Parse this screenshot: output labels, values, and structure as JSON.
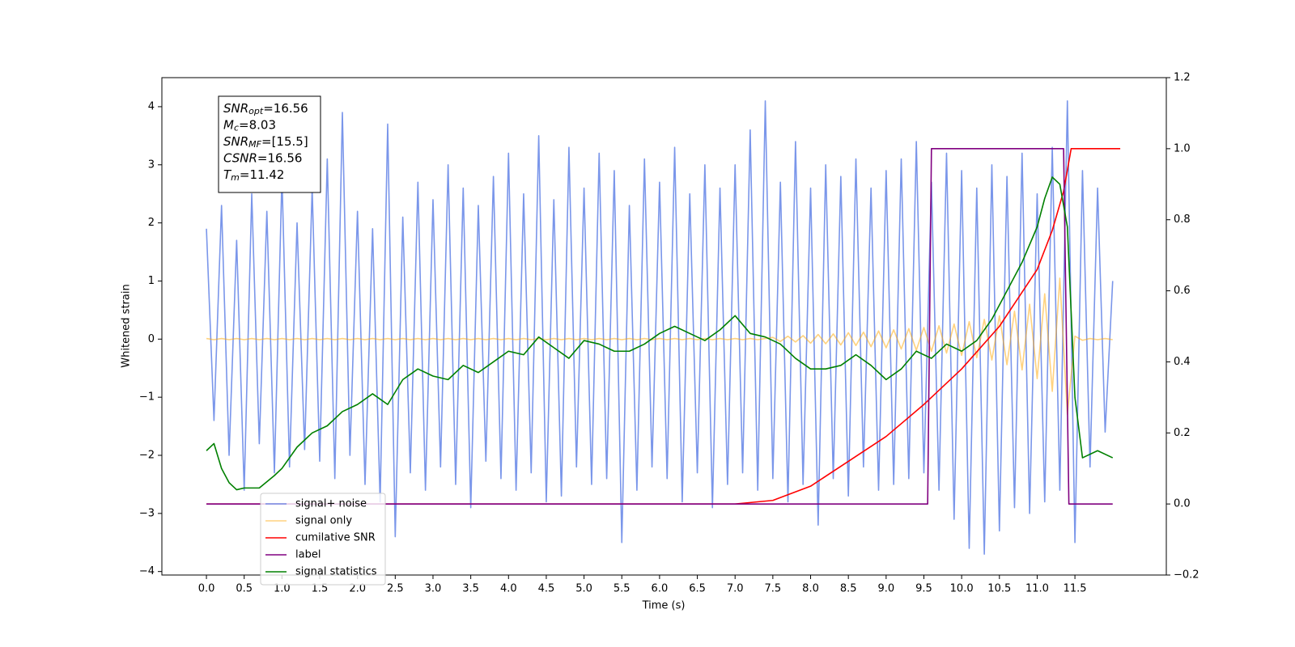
{
  "chart_data": {
    "type": "line",
    "xlabel": "Time (s)",
    "ylabel": "Whitened strain",
    "xlim": [
      -0.59,
      12.71
    ],
    "ylim": [
      -4.06,
      4.5
    ],
    "y2lim": [
      -0.2,
      1.2
    ],
    "xticks": [
      {
        "value": 0,
        "label": "0.0"
      },
      0.5,
      {
        "value": 1,
        "label": "1.0"
      },
      1.5,
      {
        "value": 2,
        "label": "2.0"
      },
      2.5,
      {
        "value": 3,
        "label": "3.0"
      },
      3.5,
      {
        "value": 4,
        "label": "4.0"
      },
      4.5,
      {
        "value": 5,
        "label": "5.0"
      },
      5.5,
      {
        "value": 6,
        "label": "6.0"
      },
      6.5,
      {
        "value": 7,
        "label": "7.0"
      },
      7.5,
      {
        "value": 8,
        "label": "8.0"
      },
      8.5,
      {
        "value": 9,
        "label": "9.0"
      },
      9.5,
      {
        "value": 10,
        "label": "10.0"
      },
      10.5,
      {
        "value": 11,
        "label": "11.0"
      },
      11.5
    ],
    "yticks": [
      {
        "value": -4,
        "label": "−4"
      },
      {
        "value": -3,
        "label": "−3"
      },
      {
        "value": -2,
        "label": "−2"
      },
      {
        "value": -1,
        "label": "−1"
      },
      0,
      1,
      2,
      3,
      4
    ],
    "y2ticks": [
      {
        "value": -0.2,
        "label": "−0.2"
      },
      {
        "value": 0,
        "label": "0.0"
      },
      0.2,
      0.4,
      0.6,
      0.8,
      {
        "value": 1,
        "label": "1.0"
      },
      1.2
    ],
    "annotation": [
      {
        "name": "SNR",
        "sub": "opt",
        "text": "=16.56"
      },
      {
        "name": "M",
        "sub": "c",
        "text": "=8.03"
      },
      {
        "name": "SNR",
        "sub": "MF",
        "text": "=[15.5]"
      },
      {
        "name": "CSNR",
        "text": "=16.56"
      },
      {
        "name": "T",
        "sub": "m",
        "text": "=11.42"
      }
    ],
    "x": [
      0,
      0.1,
      0.2,
      0.3,
      0.4,
      0.5,
      0.6,
      0.7,
      0.8,
      0.9,
      1,
      1.1,
      1.2,
      1.3,
      1.4,
      1.5,
      1.6,
      1.7,
      1.8,
      1.9,
      2,
      2.1,
      2.2,
      2.3,
      2.4,
      2.5,
      2.6,
      2.7,
      2.8,
      2.9,
      3,
      3.1,
      3.2,
      3.3,
      3.4,
      3.5,
      3.6,
      3.7,
      3.8,
      3.9,
      4,
      4.1,
      4.2,
      4.3,
      4.4,
      4.5,
      4.6,
      4.7,
      4.8,
      4.9,
      5,
      5.1,
      5.2,
      5.3,
      5.4,
      5.5,
      5.6,
      5.7,
      5.8,
      5.9,
      6,
      6.1,
      6.2,
      6.3,
      6.4,
      6.5,
      6.6,
      6.7,
      6.8,
      6.9,
      7,
      7.1,
      7.2,
      7.3,
      7.4,
      7.5,
      7.6,
      7.7,
      7.8,
      7.9,
      8,
      8.1,
      8.2,
      8.3,
      8.4,
      8.5,
      8.6,
      8.7,
      8.8,
      8.9,
      9,
      9.1,
      9.2,
      9.3,
      9.4,
      9.5,
      9.6,
      9.7,
      9.8,
      9.9,
      10,
      10.1,
      10.2,
      10.3,
      10.4,
      10.5,
      10.6,
      10.7,
      10.8,
      10.9,
      11,
      11.1,
      11.2,
      11.3,
      11.4,
      11.5,
      11.6,
      11.7,
      11.8,
      11.9,
      12
    ],
    "series": [
      {
        "name": "signal+ noise",
        "color": "#4169e1",
        "opacity": 0.7,
        "values": [
          1.9,
          -1.4,
          2.3,
          -2.0,
          1.7,
          -2.6,
          2.5,
          -1.8,
          2.2,
          -2.3,
          2.8,
          -2.2,
          2.0,
          -1.9,
          2.6,
          -2.1,
          3.1,
          -2.4,
          3.9,
          -2.0,
          2.2,
          -2.5,
          1.9,
          -2.8,
          3.7,
          -3.4,
          2.1,
          -2.3,
          2.7,
          -2.6,
          2.4,
          -2.2,
          3.0,
          -2.5,
          2.6,
          -2.9,
          2.3,
          -2.1,
          2.8,
          -2.4,
          3.2,
          -2.6,
          2.5,
          -2.3,
          3.5,
          -2.8,
          2.4,
          -2.7,
          3.3,
          -2.2,
          2.6,
          -2.5,
          3.2,
          -2.4,
          2.9,
          -3.5,
          2.3,
          -2.6,
          3.1,
          -2.2,
          2.7,
          -2.4,
          3.3,
          -2.8,
          2.5,
          -2.3,
          3.0,
          -2.9,
          2.6,
          -2.5,
          3.0,
          -2.3,
          3.6,
          -2.6,
          4.1,
          -2.4,
          2.7,
          -2.8,
          3.4,
          -2.5,
          2.6,
          -3.2,
          3.0,
          -2.4,
          2.8,
          -2.7,
          3.1,
          -2.2,
          2.6,
          -2.6,
          2.9,
          -2.5,
          3.1,
          -2.4,
          3.4,
          -2.3,
          2.7,
          -2.6,
          3.2,
          -3.1,
          2.9,
          -3.6,
          2.6,
          -3.7,
          3.0,
          -3.3,
          2.8,
          -2.9,
          3.2,
          -3.0,
          2.5,
          -2.8,
          3.3,
          -2.6,
          4.1,
          -3.5,
          2.9,
          -2.2,
          2.6,
          -1.6,
          1.0
        ]
      },
      {
        "name": "signal only",
        "color": "#ffa500",
        "opacity": 0.5,
        "values": [
          0.01,
          -0.01,
          0.01,
          -0.01,
          0.01,
          -0.01,
          0.01,
          -0.01,
          0.01,
          -0.01,
          0.01,
          -0.01,
          0.01,
          -0.01,
          0.01,
          -0.01,
          0.01,
          -0.01,
          0.01,
          -0.01,
          0.01,
          -0.01,
          0.01,
          -0.01,
          0.01,
          -0.01,
          0.01,
          -0.01,
          0.01,
          -0.01,
          0.01,
          -0.01,
          0.01,
          -0.01,
          0.01,
          -0.01,
          0.01,
          -0.01,
          0.01,
          -0.01,
          0.01,
          -0.01,
          0.01,
          -0.01,
          0.01,
          -0.01,
          0.01,
          -0.01,
          0.01,
          -0.01,
          0.01,
          -0.01,
          0.01,
          -0.01,
          0.01,
          -0.01,
          0.01,
          -0.01,
          0.01,
          -0.01,
          0.01,
          -0.01,
          0.01,
          -0.01,
          0.01,
          -0.01,
          0.01,
          -0.01,
          0.01,
          -0.01,
          0.01,
          -0.01,
          0.01,
          -0.01,
          0.01,
          0.03,
          -0.04,
          0.05,
          -0.05,
          0.06,
          -0.07,
          0.08,
          -0.08,
          0.09,
          -0.1,
          0.11,
          -0.11,
          0.12,
          -0.13,
          0.14,
          -0.15,
          0.16,
          -0.17,
          0.18,
          -0.19,
          0.2,
          -0.21,
          0.23,
          -0.24,
          0.26,
          -0.28,
          0.3,
          -0.32,
          0.34,
          -0.36,
          0.4,
          -0.44,
          0.48,
          -0.53,
          0.6,
          -0.68,
          0.78,
          -0.9,
          1.05,
          -1.3,
          0.05,
          -0.02,
          0.01,
          -0.01,
          0.01,
          -0.01
        ]
      },
      {
        "name": "cumilative SNR",
        "color": "#ff0000",
        "axis": "y2",
        "x": [
          0,
          7,
          7.5,
          8,
          8.5,
          9,
          9.5,
          10,
          10.5,
          11,
          11.2,
          11.35,
          11.45,
          12.1
        ],
        "values": [
          0,
          0,
          0.01,
          0.05,
          0.12,
          0.19,
          0.28,
          0.38,
          0.5,
          0.66,
          0.77,
          0.88,
          1.0,
          1.0
        ]
      },
      {
        "name": "label",
        "color": "#800080",
        "axis": "y2",
        "x": [
          0,
          9.55,
          9.6,
          11.35,
          11.42,
          12.0
        ],
        "values": [
          0,
          0,
          1,
          1,
          0,
          0
        ]
      },
      {
        "name": "signal statistics",
        "color": "#008000",
        "axis": "y2",
        "x": [
          0,
          0.1,
          0.2,
          0.3,
          0.4,
          0.5,
          0.7,
          0.9,
          1.0,
          1.2,
          1.4,
          1.6,
          1.8,
          2.0,
          2.2,
          2.4,
          2.6,
          2.8,
          3.0,
          3.2,
          3.4,
          3.6,
          3.8,
          4.0,
          4.2,
          4.4,
          4.6,
          4.8,
          5.0,
          5.2,
          5.4,
          5.6,
          5.8,
          6.0,
          6.2,
          6.4,
          6.6,
          6.8,
          7.0,
          7.2,
          7.4,
          7.6,
          7.8,
          8.0,
          8.2,
          8.4,
          8.6,
          8.8,
          9.0,
          9.2,
          9.4,
          9.6,
          9.8,
          10.0,
          10.2,
          10.4,
          10.6,
          10.8,
          11.0,
          11.1,
          11.2,
          11.3,
          11.4,
          11.5,
          11.6,
          11.8,
          12.0
        ],
        "values": [
          0.15,
          0.17,
          0.1,
          0.06,
          0.04,
          0.045,
          0.045,
          0.08,
          0.1,
          0.16,
          0.2,
          0.22,
          0.26,
          0.28,
          0.31,
          0.28,
          0.35,
          0.38,
          0.36,
          0.35,
          0.39,
          0.37,
          0.4,
          0.43,
          0.42,
          0.47,
          0.44,
          0.41,
          0.46,
          0.45,
          0.43,
          0.43,
          0.45,
          0.48,
          0.5,
          0.48,
          0.46,
          0.49,
          0.53,
          0.48,
          0.47,
          0.45,
          0.41,
          0.38,
          0.38,
          0.39,
          0.42,
          0.39,
          0.35,
          0.38,
          0.43,
          0.41,
          0.45,
          0.43,
          0.46,
          0.52,
          0.6,
          0.68,
          0.78,
          0.86,
          0.92,
          0.9,
          0.78,
          0.3,
          0.13,
          0.15,
          0.13
        ]
      }
    ]
  }
}
